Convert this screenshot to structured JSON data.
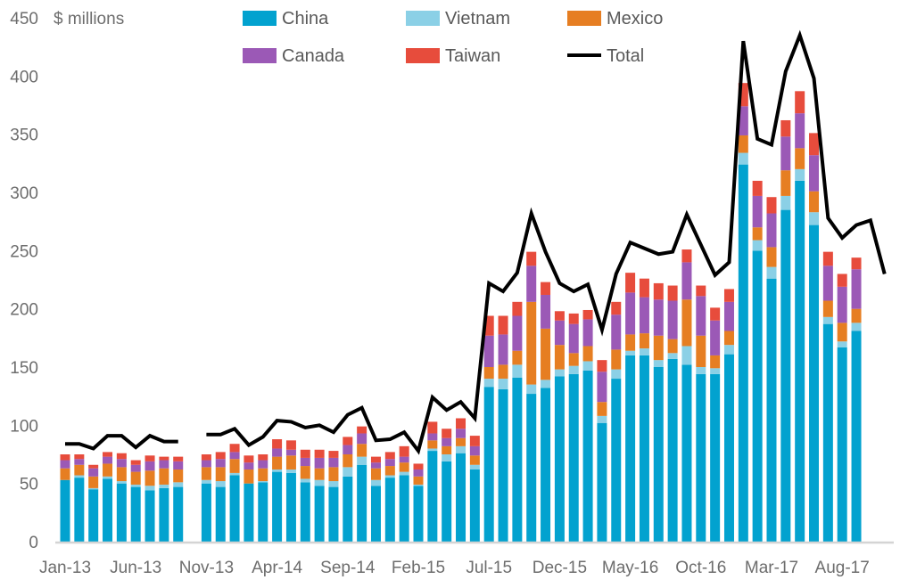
{
  "chart_data": {
    "type": "bar",
    "stacked": true,
    "title": "",
    "ylabel": "$ millions",
    "xlabel": "",
    "ylim": [
      0,
      450
    ],
    "yticks": [
      0,
      50,
      100,
      150,
      200,
      250,
      300,
      350,
      400,
      450
    ],
    "xtick_labels": [
      "Jan-13",
      "Jun-13",
      "Nov-13",
      "Apr-14",
      "Sep-14",
      "Feb-15",
      "Jul-15",
      "Dec-15",
      "May-16",
      "Oct-16",
      "Mar-17",
      "Aug-17"
    ],
    "legend_position": "top",
    "grid": false,
    "categories": [
      "Jan-13",
      "Feb-13",
      "Mar-13",
      "Apr-13",
      "May-13",
      "Jun-13",
      "Jul-13",
      "Aug-13",
      "Sep-13",
      "Oct-13",
      "Nov-13",
      "Dec-13",
      "Jan-14",
      "Feb-14",
      "Mar-14",
      "Apr-14",
      "May-14",
      "Jun-14",
      "Jul-14",
      "Aug-14",
      "Sep-14",
      "Oct-14",
      "Nov-14",
      "Dec-14",
      "Jan-15",
      "Feb-15",
      "Mar-15",
      "Apr-15",
      "May-15",
      "Jun-15",
      "Jul-15",
      "Aug-15",
      "Sep-15",
      "Oct-15",
      "Nov-15",
      "Dec-15",
      "Jan-16",
      "Feb-16",
      "Mar-16",
      "Apr-16",
      "May-16",
      "Jun-16",
      "Jul-16",
      "Aug-16",
      "Sep-16",
      "Oct-16",
      "Nov-16",
      "Dec-16",
      "Jan-17",
      "Feb-17",
      "Mar-17",
      "Apr-17",
      "May-17",
      "Jun-17",
      "Jul-17",
      "Aug-17",
      "Sep-17",
      "Oct-17",
      "Nov-17"
    ],
    "series": [
      {
        "name": "China",
        "kind": "bar",
        "color": "#02A2CF",
        "values": [
          53,
          55,
          45,
          54,
          50,
          47,
          44,
          46,
          47,
          null,
          50,
          47,
          57,
          50,
          51,
          60,
          59,
          51,
          48,
          47,
          56,
          66,
          48,
          55,
          57,
          48,
          78,
          69,
          76,
          62,
          133,
          131,
          141,
          127,
          132,
          142,
          144,
          147,
          102,
          140,
          160,
          160,
          150,
          157,
          152,
          144,
          144,
          161,
          324,
          250,
          226,
          285,
          310,
          272,
          187,
          167,
          181,
          null,
          null
        ]
      },
      {
        "name": "Vietnam",
        "kind": "bar",
        "color": "#8BD0E6",
        "values": [
          0,
          2,
          1,
          2,
          2,
          2,
          4,
          3,
          4,
          null,
          3,
          5,
          2,
          0,
          1,
          2,
          3,
          3,
          5,
          5,
          8,
          7,
          5,
          2,
          3,
          1,
          2,
          6,
          6,
          4,
          7,
          9,
          11,
          8,
          7,
          6,
          7,
          8,
          6,
          8,
          4,
          6,
          6,
          5,
          16,
          6,
          5,
          8,
          10,
          9,
          10,
          12,
          10,
          11,
          6,
          5,
          7,
          null,
          null
        ]
      },
      {
        "name": "Mexico",
        "kind": "bar",
        "color": "#E67E22",
        "values": [
          10,
          9,
          10,
          11,
          12,
          11,
          13,
          14,
          11,
          null,
          11,
          12,
          12,
          12,
          11,
          11,
          12,
          11,
          10,
          12,
          11,
          11,
          10,
          8,
          8,
          7,
          7,
          7,
          7,
          8,
          10,
          12,
          12,
          71,
          44,
          21,
          11,
          13,
          12,
          17,
          14,
          13,
          21,
          12,
          40,
          27,
          11,
          12,
          15,
          11,
          17,
          22,
          18,
          18,
          14,
          16,
          12,
          null,
          null
        ]
      },
      {
        "name": "Canada",
        "kind": "bar",
        "color": "#9B59B6",
        "values": [
          7,
          5,
          7,
          6,
          7,
          6,
          8,
          7,
          7,
          null,
          6,
          7,
          6,
          6,
          7,
          7,
          5,
          7,
          9,
          8,
          8,
          9,
          5,
          6,
          5,
          6,
          6,
          7,
          8,
          8,
          27,
          26,
          30,
          31,
          29,
          21,
          25,
          23,
          26,
          30,
          36,
          31,
          31,
          33,
          32,
          34,
          30,
          25,
          25,
          27,
          29,
          29,
          30,
          31,
          30,
          31,
          34,
          null,
          null
        ]
      },
      {
        "name": "Taiwan",
        "kind": "bar",
        "color": "#E74C3C",
        "values": [
          5,
          4,
          3,
          4,
          5,
          4,
          5,
          3,
          4,
          null,
          5,
          6,
          7,
          6,
          5,
          8,
          8,
          7,
          7,
          6,
          7,
          6,
          5,
          6,
          9,
          5,
          10,
          8,
          9,
          9,
          17,
          16,
          12,
          12,
          11,
          8,
          9,
          8,
          10,
          11,
          17,
          16,
          14,
          13,
          11,
          9,
          11,
          11,
          20,
          13,
          14,
          14,
          19,
          19,
          12,
          11,
          10,
          null,
          null
        ]
      },
      {
        "name": "Total",
        "kind": "line",
        "color": "#000000",
        "values": [
          84,
          84,
          80,
          91,
          91,
          81,
          91,
          86,
          86,
          null,
          92,
          92,
          97,
          83,
          90,
          104,
          103,
          98,
          100,
          94,
          109,
          115,
          87,
          88,
          94,
          78,
          124,
          113,
          120,
          106,
          222,
          215,
          231,
          282,
          249,
          222,
          215,
          221,
          182,
          230,
          257,
          252,
          247,
          249,
          281,
          255,
          229,
          240,
          430,
          346,
          341,
          404,
          435,
          398,
          278,
          261,
          272,
          276,
          230
        ]
      }
    ]
  }
}
